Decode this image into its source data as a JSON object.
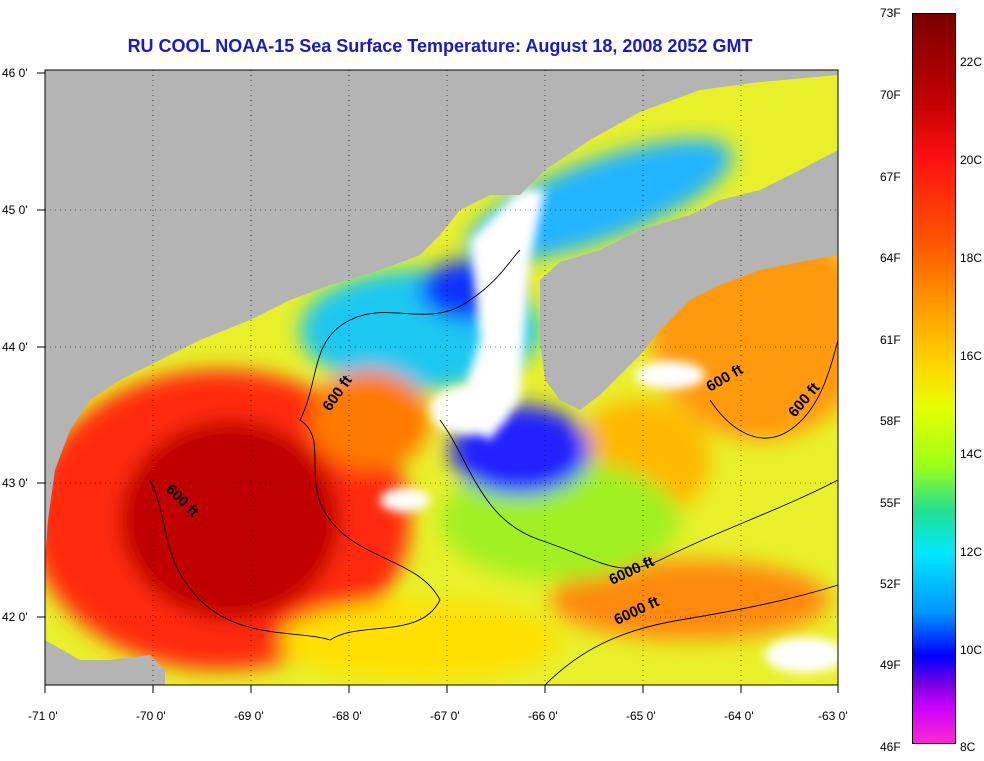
{
  "title": "RU COOL  NOAA-15  Sea Surface Temperature:  August 18, 2008 2052 GMT",
  "map": {
    "lon_range": [
      -71,
      -63
    ],
    "lat_range": [
      41.5,
      46
    ],
    "lon_ticks": [
      "-71 0'",
      "-70 0'",
      "-69 0'",
      "-68 0'",
      "-67 0'",
      "-66 0'",
      "-65 0'",
      "-64 0'",
      "-63 0'"
    ],
    "lat_ticks": [
      "46 0'",
      "45 0'",
      "44 0'",
      "43 0'",
      "42 0'"
    ],
    "contour_labels": [
      "600 ft",
      "600 ft",
      "600 ft",
      "600 ft",
      "6000 ft"
    ],
    "colors": {
      "land": "#b4b4b4",
      "cloud": "#ffffff",
      "warm": "#d01010",
      "cool": "#1e6cff"
    }
  },
  "colorbar": {
    "fahrenheit": [
      "73F",
      "70F",
      "67F",
      "64F",
      "61F",
      "58F",
      "55F",
      "52F",
      "49F",
      "46F"
    ],
    "celsius": [
      "22C",
      "20C",
      "18C",
      "16C",
      "14C",
      "12C",
      "10C",
      "8C"
    ]
  }
}
